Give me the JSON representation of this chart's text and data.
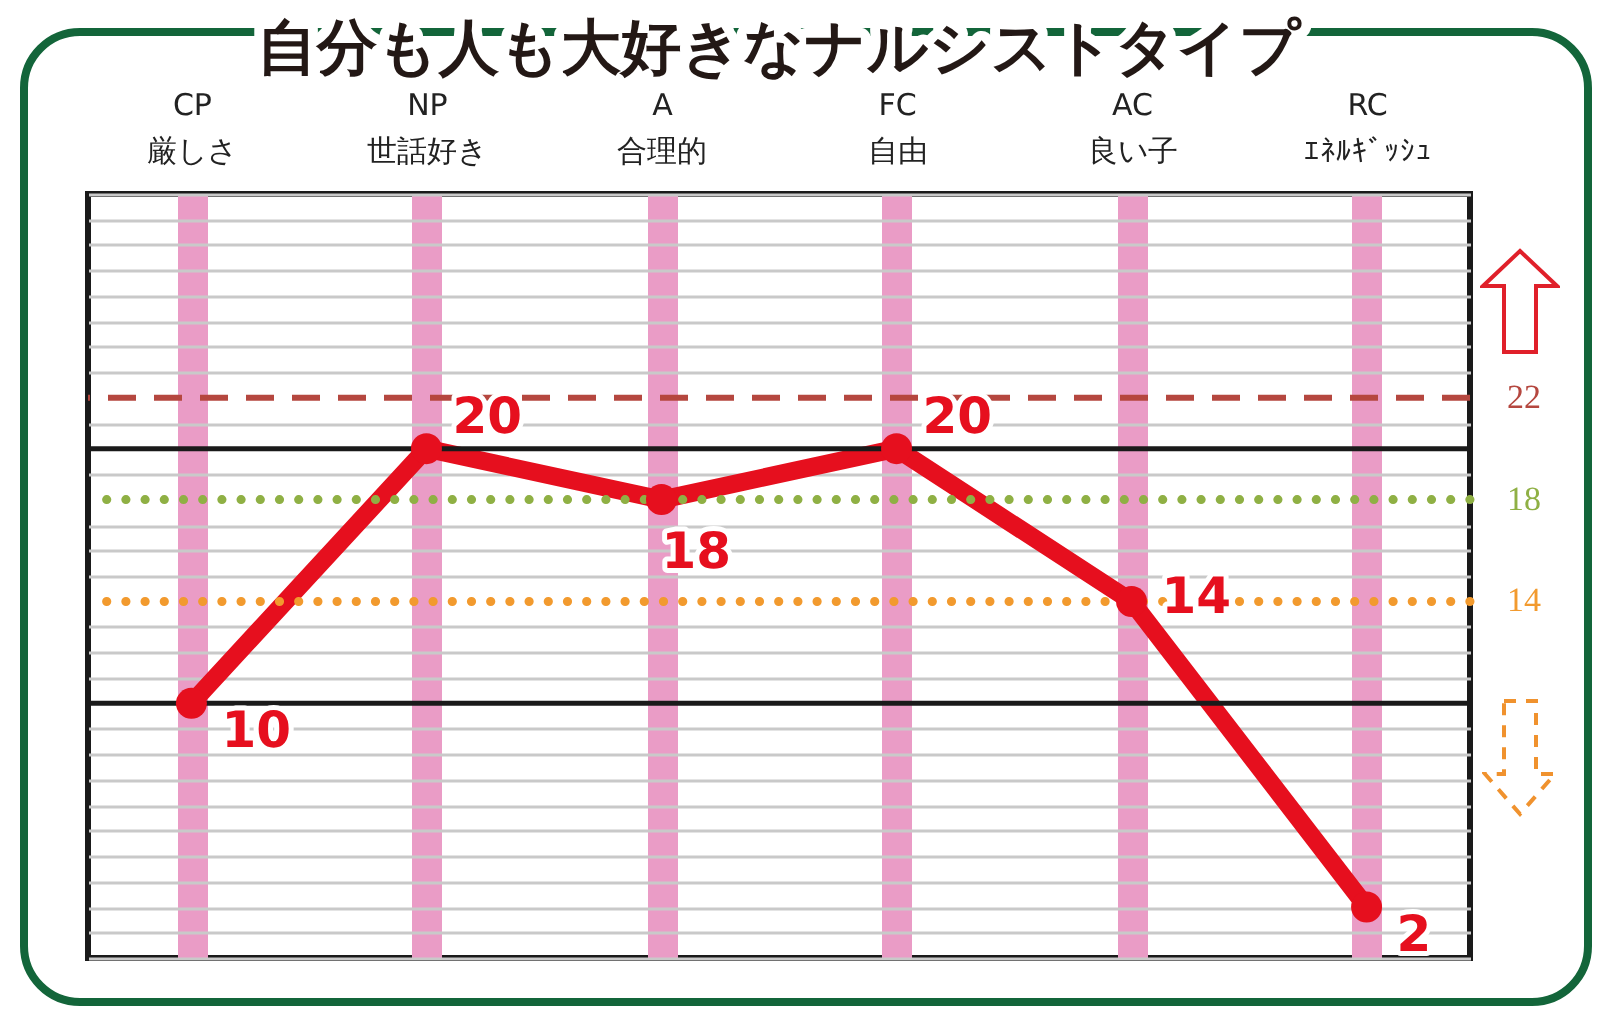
{
  "chart_data": {
    "type": "line",
    "title": "自分も人も大好きなナルシストタイプ",
    "categories": [
      "CP\n厳しさ",
      "NP\n世話好き",
      "A\n合理的",
      "FC\n自由",
      "AC\n良い子",
      "RC\nｴﾈﾙｷﾞｯｼｭ"
    ],
    "values": [
      10,
      20,
      18,
      20,
      14,
      2
    ],
    "color": "#e60f1e",
    "ylim": [
      0,
      30
    ],
    "yticks": [
      {
        "value": 0,
        "label": null
      },
      {
        "value": 1,
        "label": null
      },
      {
        "value": 2,
        "label": null
      },
      {
        "value": 3,
        "label": null
      },
      {
        "value": 4,
        "label": null
      },
      {
        "value": 5,
        "label": null
      },
      {
        "value": 6,
        "label": null
      },
      {
        "value": 7,
        "label": null
      },
      {
        "value": 8,
        "label": null
      },
      {
        "value": 9,
        "label": null
      },
      {
        "value": 11,
        "label": null
      },
      {
        "value": 12,
        "label": null
      },
      {
        "value": 13,
        "label": null
      },
      {
        "value": 15,
        "label": null
      },
      {
        "value": 16,
        "label": null
      },
      {
        "value": 17,
        "label": null
      },
      {
        "value": 19,
        "label": null
      },
      {
        "value": 21,
        "label": null
      },
      {
        "value": 23,
        "label": null
      },
      {
        "value": 24,
        "label": null
      },
      {
        "value": 25,
        "label": null
      },
      {
        "value": 26,
        "label": null
      },
      {
        "value": 27,
        "label": null
      },
      {
        "value": 28,
        "label": null
      },
      {
        "value": 29,
        "label": null
      },
      {
        "value": 30,
        "label": null
      }
    ],
    "grid": true,
    "tick_labels": "x",
    "marker": "circle",
    "data_labels": true,
    "ref_lines": [
      {
        "axis": "y",
        "value": 22,
        "label": "22",
        "color": "#b5473f",
        "line_style": "dashed"
      },
      {
        "axis": "y",
        "value": 18,
        "label": "18",
        "color": "#8fb044",
        "line_style": "dotted"
      },
      {
        "axis": "y",
        "value": 14,
        "label": "14",
        "color": "#f29a2e",
        "line_style": "dotted"
      },
      {
        "axis": "y",
        "value": 10,
        "color": "#1a1a1a",
        "line_style": "solid"
      },
      {
        "axis": "y",
        "value": 20,
        "color": "#1a1a1a",
        "line_style": "solid"
      }
    ]
  }
}
